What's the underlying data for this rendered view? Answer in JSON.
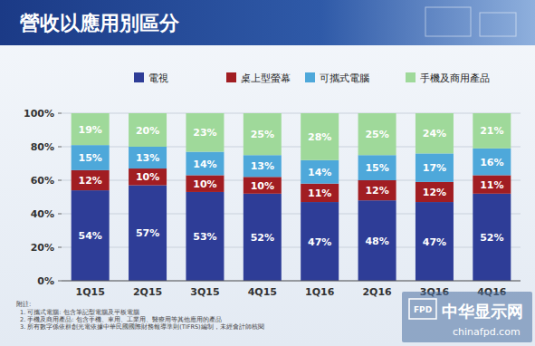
{
  "chart_data": {
    "type": "bar",
    "title": "營收以應用別區分",
    "categories": [
      "1Q15",
      "2Q15",
      "3Q15",
      "4Q15",
      "1Q16",
      "2Q16",
      "3Q16",
      "4Q16"
    ],
    "series": [
      {
        "name": "電視",
        "color": "#2e3d97",
        "values": [
          54,
          57,
          53,
          52,
          47,
          48,
          47,
          52
        ],
        "value_labels": [
          "54%",
          "57%",
          "53%",
          "52%",
          "47%",
          "48%",
          "47%",
          "52%"
        ]
      },
      {
        "name": "桌上型螢幕",
        "color": "#a11d22",
        "values": [
          12,
          10,
          10,
          10,
          11,
          12,
          12,
          11
        ],
        "value_labels": [
          "12%",
          "10%",
          "10%",
          "10%",
          "11%",
          "12%",
          "12%",
          "11%"
        ]
      },
      {
        "name": "可攜式電腦",
        "color": "#4ea8da",
        "values": [
          15,
          13,
          14,
          13,
          14,
          15,
          17,
          16
        ],
        "value_labels": [
          "15%",
          "13%",
          "14%",
          "13%",
          "14%",
          "15%",
          "17%",
          "16%"
        ]
      },
      {
        "name": "手機及商用產品",
        "color": "#9fd99a",
        "values": [
          19,
          20,
          23,
          25,
          28,
          25,
          24,
          21
        ],
        "value_labels": [
          "19%",
          "20%",
          "23%",
          "25%",
          "28%",
          "25%",
          "24%",
          "21%"
        ]
      }
    ],
    "ylim": [
      0,
      100
    ],
    "yticks": [
      {
        "value": 0,
        "label": "0%"
      },
      {
        "value": 20,
        "label": "20%"
      },
      {
        "value": 40,
        "label": "40%"
      },
      {
        "value": 60,
        "label": "60%"
      },
      {
        "value": 80,
        "label": "80%"
      },
      {
        "value": 100,
        "label": "100%"
      }
    ],
    "stacked": true,
    "data_labels": true,
    "grid": true,
    "legend": "top",
    "annotations": [
      "附註:",
      "1.   可攜式電腦: 包含筆記型電腦及平板電腦",
      "2.   手機及商用產品: 包含手機、車用、工業用、醫療用等其他應用的產品",
      "3.   所有數字係依群創光電依據中華民國國際財務報導準則(TIFRS)編制，未經會計師核閱",
      "FPD",
      "中华显示网",
      "chinafpd.com"
    ]
  }
}
